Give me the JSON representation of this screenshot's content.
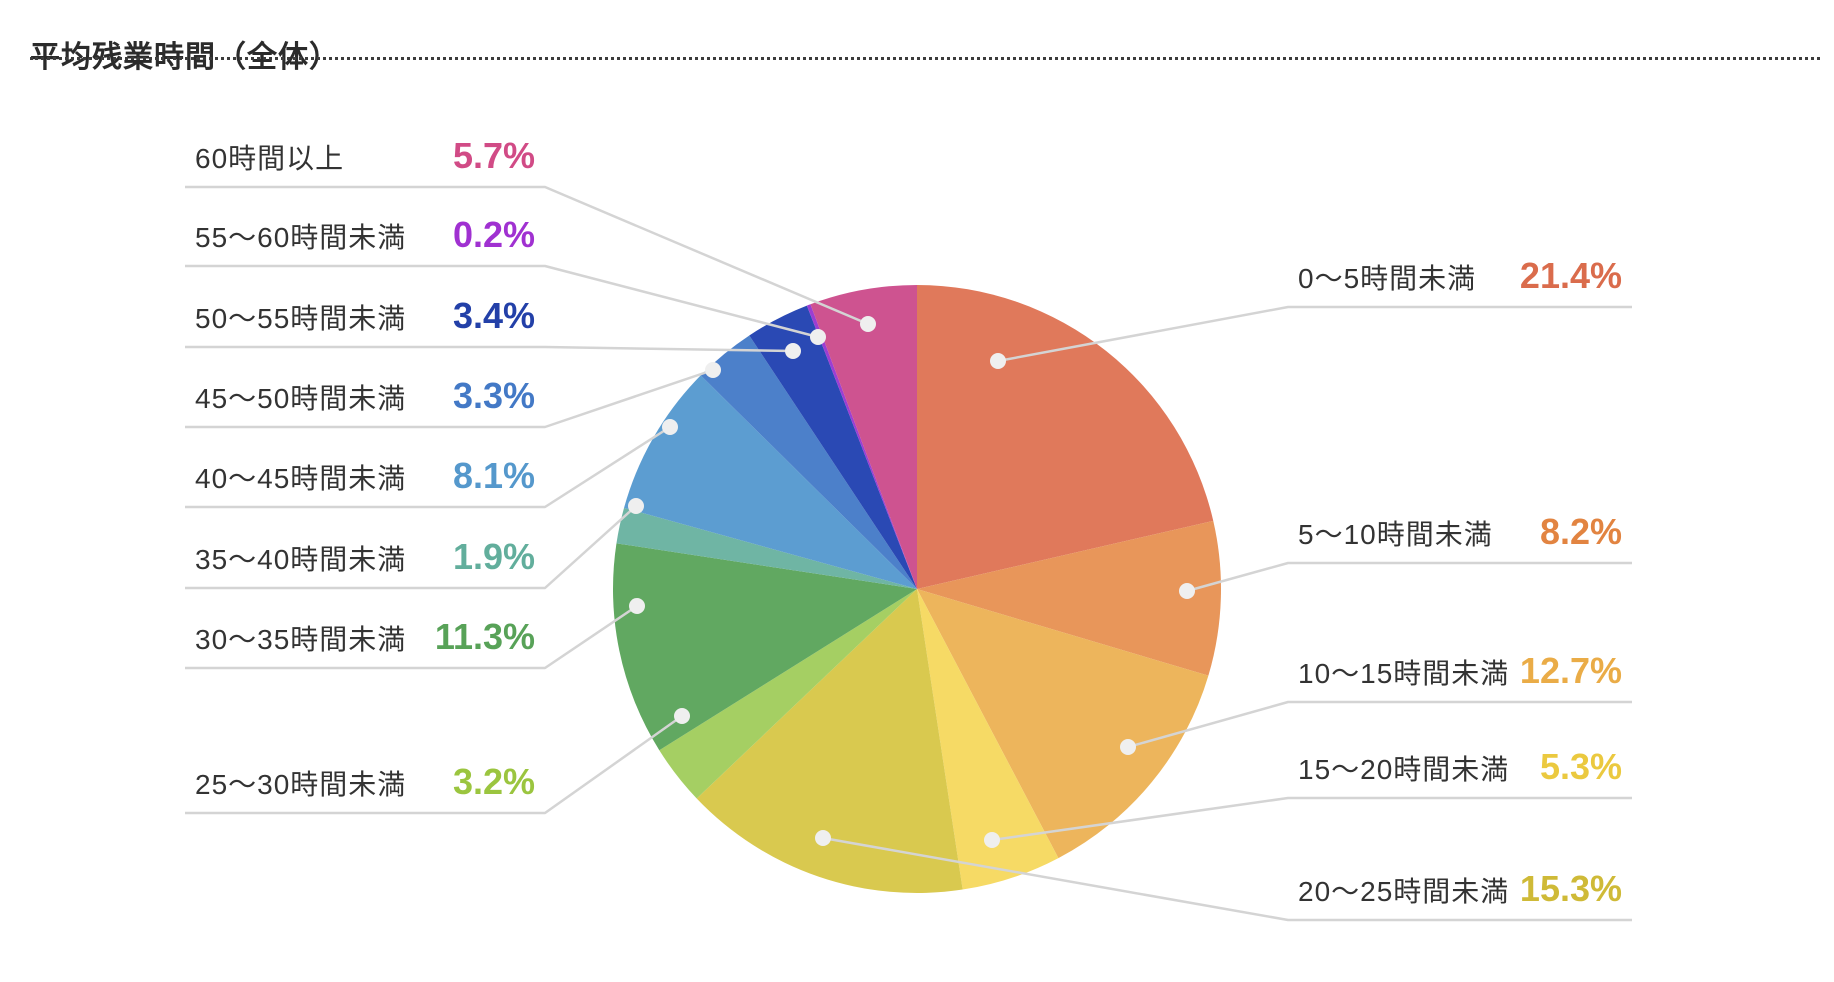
{
  "page": {
    "title": "平均残業時間（全体）"
  },
  "chart_data": {
    "type": "pie",
    "title": "平均残業時間（全体）",
    "unit": "%",
    "total": 100.0,
    "start_angle_deg": 0,
    "direction": "clockwise",
    "legend_position": "callouts-left-and-right",
    "slices": [
      {
        "label": "0〜5時間未満",
        "value": 21.4,
        "display": "21.4%",
        "color": "#E0795B",
        "text_color": "#DA6C4C",
        "side": "right"
      },
      {
        "label": "5〜10時間未満",
        "value": 8.2,
        "display": "8.2%",
        "color": "#E8965A",
        "text_color": "#E28441",
        "side": "right"
      },
      {
        "label": "10〜15時間未満",
        "value": 12.7,
        "display": "12.7%",
        "color": "#EDB55C",
        "text_color": "#EAAC47",
        "side": "right"
      },
      {
        "label": "15〜20時間未満",
        "value": 5.3,
        "display": "5.3%",
        "color": "#F6DA65",
        "text_color": "#EBC93F",
        "side": "right"
      },
      {
        "label": "20〜25時間未満",
        "value": 15.3,
        "display": "15.3%",
        "color": "#D9C94F",
        "text_color": "#CFBA37",
        "side": "right"
      },
      {
        "label": "25〜30時間未満",
        "value": 3.2,
        "display": "3.2%",
        "color": "#A5CF63",
        "text_color": "#9BC53F",
        "side": "left"
      },
      {
        "label": "30〜35時間未満",
        "value": 11.3,
        "display": "11.3%",
        "color": "#61A861",
        "text_color": "#58A258",
        "side": "left"
      },
      {
        "label": "35〜40時間未満",
        "value": 1.9,
        "display": "1.9%",
        "color": "#6FB5A4",
        "text_color": "#62AE9C",
        "side": "left"
      },
      {
        "label": "40〜45時間未満",
        "value": 8.1,
        "display": "8.1%",
        "color": "#5C9DD1",
        "text_color": "#5598CC",
        "side": "left"
      },
      {
        "label": "45〜50時間未満",
        "value": 3.3,
        "display": "3.3%",
        "color": "#4C80CA",
        "text_color": "#4379C6",
        "side": "left"
      },
      {
        "label": "50〜55時間未満",
        "value": 3.4,
        "display": "3.4%",
        "color": "#2A49B4",
        "text_color": "#2340A8",
        "side": "left"
      },
      {
        "label": "55〜60時間未満",
        "value": 0.2,
        "display": "0.2%",
        "color": "#9C3ED2",
        "text_color": "#A031D1",
        "side": "left"
      },
      {
        "label": "60時間以上",
        "value": 5.7,
        "display": "5.7%",
        "color": "#CE5390",
        "text_color": "#D14B86",
        "side": "left"
      }
    ]
  }
}
